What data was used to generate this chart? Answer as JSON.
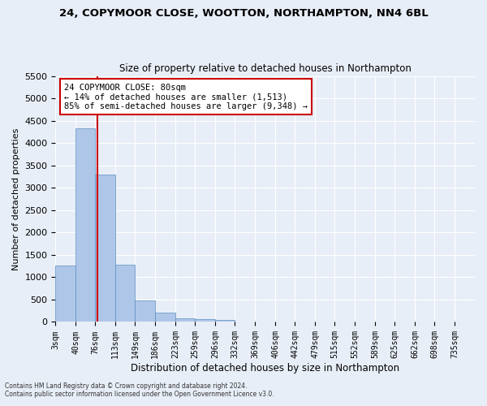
{
  "title_line1": "24, COPYMOOR CLOSE, WOOTTON, NORTHAMPTON, NN4 6BL",
  "title_line2": "Size of property relative to detached houses in Northampton",
  "xlabel": "Distribution of detached houses by size in Northampton",
  "ylabel": "Number of detached properties",
  "footnote1": "Contains HM Land Registry data © Crown copyright and database right 2024.",
  "footnote2": "Contains public sector information licensed under the Open Government Licence v3.0.",
  "bar_labels": [
    "3sqm",
    "40sqm",
    "76sqm",
    "113sqm",
    "149sqm",
    "186sqm",
    "223sqm",
    "259sqm",
    "296sqm",
    "332sqm",
    "369sqm",
    "406sqm",
    "442sqm",
    "479sqm",
    "515sqm",
    "552sqm",
    "589sqm",
    "625sqm",
    "662sqm",
    "698sqm",
    "735sqm"
  ],
  "bar_values": [
    1260,
    4330,
    3300,
    1280,
    480,
    210,
    85,
    60,
    50,
    0,
    0,
    0,
    0,
    0,
    0,
    0,
    0,
    0,
    0,
    0,
    0
  ],
  "bar_color": "#aec6e8",
  "bar_edge_color": "#5a8fc0",
  "ylim": [
    0,
    5500
  ],
  "yticks": [
    0,
    500,
    1000,
    1500,
    2000,
    2500,
    3000,
    3500,
    4000,
    4500,
    5000,
    5500
  ],
  "property_label": "24 COPYMOOR CLOSE: 80sqm",
  "annotation_line1": "← 14% of detached houses are smaller (1,513)",
  "annotation_line2": "85% of semi-detached houses are larger (9,348) →",
  "vline_x": 80,
  "vline_color": "#cc0000",
  "annotation_box_color": "#ffffff",
  "annotation_box_edge": "#cc0000",
  "background_color": "#e8eef7",
  "grid_color": "#ffffff"
}
